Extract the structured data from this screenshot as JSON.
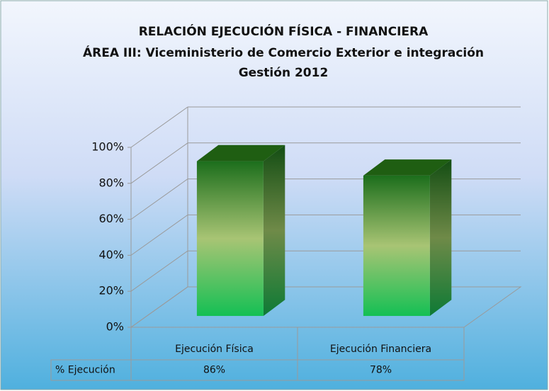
{
  "chart_data": {
    "type": "bar3d",
    "title": "RELACIÓN EJECUCIÓN FÍSICA - FINANCIERA",
    "subtitle": "ÁREA III: Viceministerio de Comercio Exterior e integración",
    "subtitle2": "Gestión 2012",
    "categories": [
      "Ejecución Física",
      "Ejecución Financiera"
    ],
    "series": [
      {
        "name": "% Ejecución",
        "color": "#2a9a3a",
        "values": [
          86,
          78
        ],
        "value_labels": [
          "86%",
          "78%"
        ]
      }
    ],
    "ylim": [
      0,
      100
    ],
    "yticks": [
      {
        "value": 0,
        "label": "0%"
      },
      {
        "value": 20,
        "label": "20%"
      },
      {
        "value": 40,
        "label": "40%"
      },
      {
        "value": 60,
        "label": "60%"
      },
      {
        "value": 80,
        "label": "80%"
      },
      {
        "value": 100,
        "label": "100%"
      }
    ],
    "grid": true,
    "data_table": true
  }
}
